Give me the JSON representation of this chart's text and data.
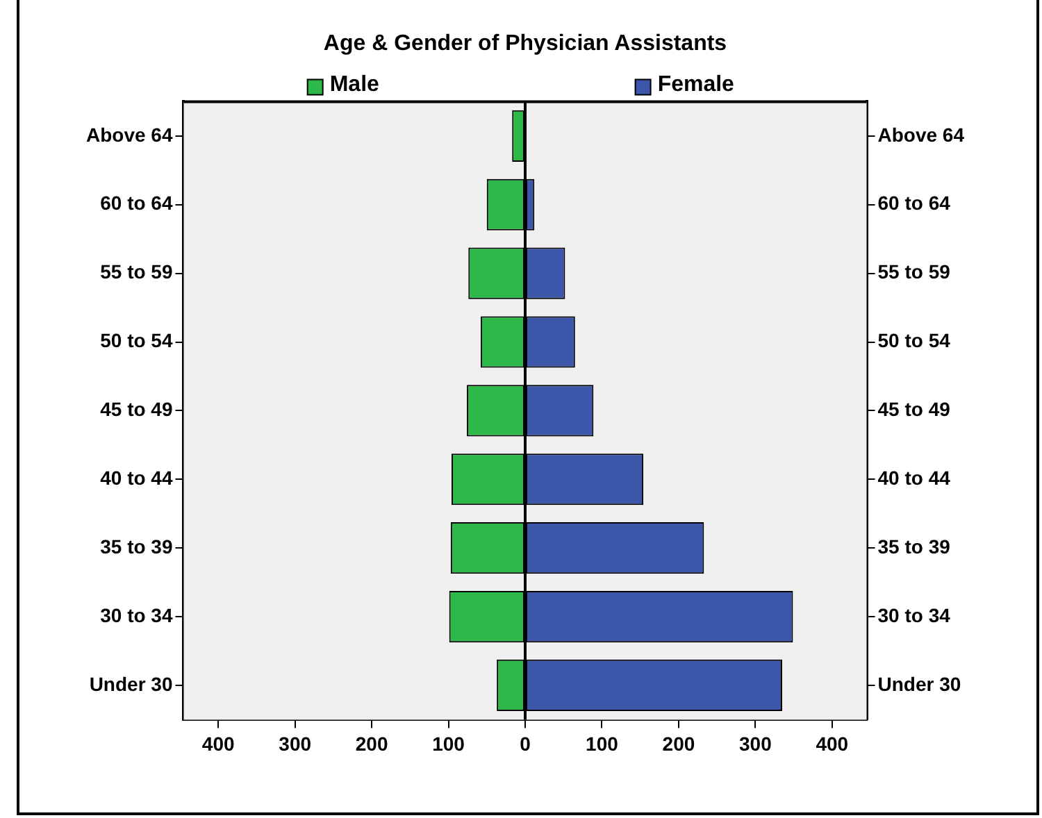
{
  "chart_data": {
    "type": "bar",
    "orientation": "horizontal",
    "stacked": true,
    "title": "Age & Gender of Physician Assistants",
    "categories": [
      "Above 64",
      "60 to 64",
      "55 to 59",
      "50 to 54",
      "45 to 49",
      "40 to 44",
      "35 to 39",
      "30 to 34",
      "Under 30"
    ],
    "y2_categories": [
      "Above 64",
      "60 to 64",
      "55 to 59",
      "50 to 54",
      "45 to 49",
      "40 to 44",
      "35 to 39",
      "30 to 34",
      "Under 30"
    ],
    "series": [
      {
        "name": "Male",
        "color": "#2db84a",
        "values": [
          -17,
          -50,
          -74,
          -58,
          -76,
          -96,
          -97,
          -99,
          -37
        ]
      },
      {
        "name": "Female",
        "color": "#3c57a9",
        "values": [
          0,
          12,
          52,
          65,
          89,
          154,
          233,
          349,
          335
        ]
      }
    ],
    "xlim": [
      -445,
      445
    ],
    "xticks": [
      {
        "value": -400,
        "label": "400"
      },
      {
        "value": -300,
        "label": "300"
      },
      {
        "value": -200,
        "label": "200"
      },
      {
        "value": -100,
        "label": "100"
      },
      0,
      100,
      200,
      300,
      400
    ],
    "legend": "top"
  }
}
